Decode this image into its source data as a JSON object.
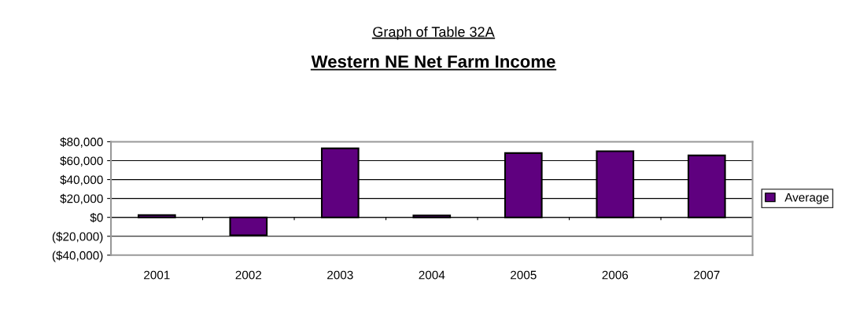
{
  "chart_data": {
    "type": "bar",
    "subtitle": "Graph of Table 32A",
    "title": "Western NE Net Farm Income",
    "categories": [
      "2001",
      "2002",
      "2003",
      "2004",
      "2005",
      "2006",
      "2007"
    ],
    "series": [
      {
        "name": "Average",
        "color": "#5f007f",
        "values": [
          2500,
          -19000,
          73000,
          2000,
          68000,
          70000,
          65500
        ]
      }
    ],
    "ylim": [
      -40000,
      80000
    ],
    "yticks": [
      {
        "value": -40000,
        "label": "($40,000)"
      },
      {
        "value": -20000,
        "label": "($20,000)"
      },
      {
        "value": 0,
        "label": "$0"
      },
      {
        "value": 20000,
        "label": "$20,000"
      },
      {
        "value": 40000,
        "label": "$40,000"
      },
      {
        "value": 60000,
        "label": "$60,000"
      },
      {
        "value": 80000,
        "label": "$80,000"
      }
    ],
    "grid": "y",
    "legend": "right"
  }
}
